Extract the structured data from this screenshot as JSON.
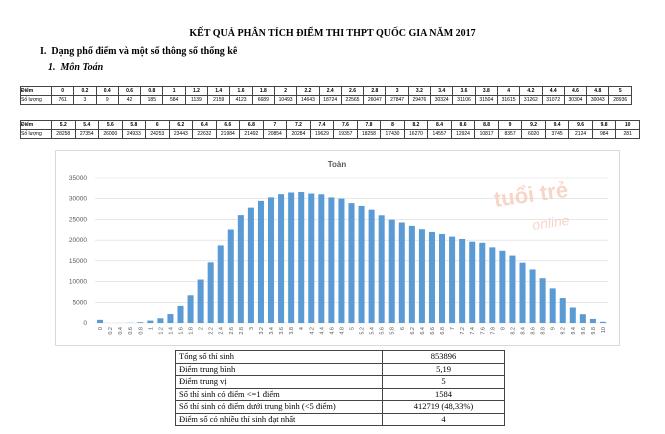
{
  "title": "KẾT QUẢ PHÂN TÍCH ĐIỂM THI THPT QUỐC GIA NĂM 2017",
  "section": {
    "number": "I.",
    "text": "Dạng phổ điểm và một số thông số thống kê"
  },
  "subsection": {
    "number": "1.",
    "text": "Môn Toán"
  },
  "score_tables": [
    {
      "score_label": "Điểm",
      "scores": [
        "0",
        "0.2",
        "0.4",
        "0.6",
        "0.8",
        "1",
        "1.2",
        "1.4",
        "1.6",
        "1.8",
        "2",
        "2.2",
        "2.4",
        "2.6",
        "2.8",
        "3",
        "3.2",
        "3.4",
        "3.6",
        "3.8",
        "4",
        "4.2",
        "4.4",
        "4.6",
        "4.8",
        "5"
      ],
      "count_label": "Số lượng",
      "counts": [
        761,
        3,
        9,
        42,
        185,
        584,
        1139,
        2159,
        4123,
        6689,
        10493,
        14643,
        18724,
        22565,
        26047,
        27847,
        29476,
        30324,
        31106,
        31504,
        31615,
        31262,
        31072,
        30304,
        30043,
        28936
      ]
    },
    {
      "score_label": "Điểm",
      "scores": [
        "5.2",
        "5.4",
        "5.6",
        "5.8",
        "6",
        "6.2",
        "6.4",
        "6.6",
        "6.8",
        "7",
        "7.2",
        "7.4",
        "7.6",
        "7.8",
        "8",
        "8.2",
        "8.4",
        "8.6",
        "8.8",
        "9",
        "9.2",
        "9.4",
        "9.6",
        "9.8",
        "10"
      ],
      "count_label": "Số lượng",
      "counts": [
        28258,
        27354,
        26000,
        24933,
        24253,
        23443,
        22632,
        21984,
        21492,
        20854,
        20284,
        19629,
        19357,
        18258,
        17430,
        16270,
        14557,
        12924,
        10817,
        8357,
        6020,
        3745,
        2124,
        984,
        281
      ]
    }
  ],
  "chart": {
    "title": "Toàn",
    "color": "#5b9bd5",
    "ylim": [
      0,
      35000
    ],
    "yticks": [
      0,
      5000,
      10000,
      15000,
      20000,
      25000,
      30000,
      35000
    ],
    "grid": true,
    "watermark": [
      "tuổi trẻ",
      "online"
    ]
  },
  "stats_table": {
    "rows": [
      [
        "Tổng số thí sinh",
        "853896"
      ],
      [
        "Điểm trung bình",
        "5,19"
      ],
      [
        "Điểm trung vị",
        "5"
      ],
      [
        "Số thí sinh có điểm <=1 điểm",
        "1584"
      ],
      [
        "Số thí sinh có điểm dưới trung bình (<5 điểm)",
        "412719 (48,33%)"
      ],
      [
        "Điểm số có nhiều thí sinh đạt nhất",
        "4"
      ]
    ]
  }
}
